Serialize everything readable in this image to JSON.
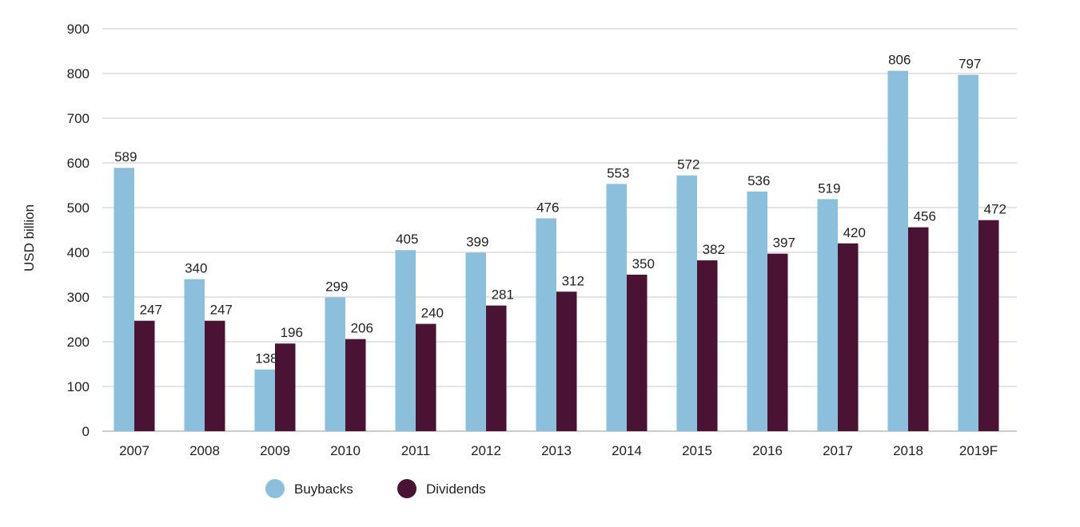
{
  "chart_data": {
    "type": "bar",
    "title": "",
    "xlabel": "",
    "ylabel": "USD billion",
    "ylim": [
      0,
      900
    ],
    "yticks": [
      0,
      100,
      200,
      300,
      400,
      500,
      600,
      700,
      800,
      900
    ],
    "grid": true,
    "legend_position": "bottom-left",
    "categories": [
      "2007",
      "2008",
      "2009",
      "2010",
      "2011",
      "2012",
      "2013",
      "2014",
      "2015",
      "2016",
      "2017",
      "2018",
      "2019F"
    ],
    "series": [
      {
        "name": "Buybacks",
        "color": "#8bbfdc",
        "values": [
          589,
          340,
          138,
          299,
          405,
          399,
          476,
          553,
          572,
          536,
          519,
          806,
          797
        ]
      },
      {
        "name": "Dividends",
        "color": "#4a1334",
        "values": [
          247,
          247,
          196,
          206,
          240,
          281,
          312,
          350,
          382,
          397,
          420,
          456,
          472
        ]
      }
    ]
  }
}
